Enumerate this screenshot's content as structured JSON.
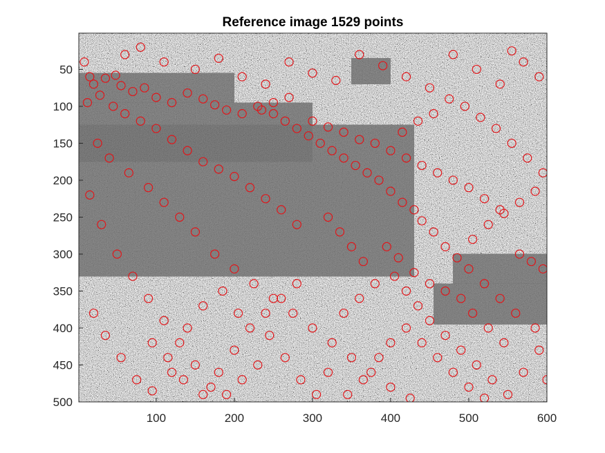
{
  "chart_data": {
    "type": "scatter",
    "title": "Reference image 1529 points",
    "xlabel": "",
    "ylabel": "",
    "xlim": [
      1,
      600
    ],
    "ylim": [
      1,
      500
    ],
    "y_reversed": true,
    "grid": false,
    "legend": "none",
    "xticks": [
      100,
      200,
      300,
      400,
      500,
      600
    ],
    "yticks": [
      50,
      100,
      150,
      200,
      250,
      300,
      350,
      400,
      450,
      500
    ],
    "xtick_labels": [
      "100",
      "200",
      "300",
      "400",
      "500",
      "600"
    ],
    "ytick_labels": [
      "50",
      "100",
      "150",
      "200",
      "250",
      "300",
      "350",
      "400",
      "450",
      "500"
    ],
    "background": "grayscale SAR image of an urban area crossed by a dark river",
    "marker": {
      "shape": "circle-outline",
      "color": "#e0161a"
    },
    "series": [
      {
        "name": "",
        "points": [
          [
            12,
            95
          ],
          [
            20,
            70
          ],
          [
            35,
            62
          ],
          [
            48,
            58
          ],
          [
            55,
            72
          ],
          [
            70,
            80
          ],
          [
            85,
            75
          ],
          [
            100,
            88
          ],
          [
            120,
            95
          ],
          [
            140,
            82
          ],
          [
            160,
            90
          ],
          [
            175,
            98
          ],
          [
            190,
            105
          ],
          [
            210,
            110
          ],
          [
            230,
            100
          ],
          [
            250,
            95
          ],
          [
            270,
            88
          ],
          [
            300,
            120
          ],
          [
            320,
            128
          ],
          [
            340,
            135
          ],
          [
            360,
            145
          ],
          [
            380,
            150
          ],
          [
            400,
            160
          ],
          [
            420,
            170
          ],
          [
            440,
            180
          ],
          [
            460,
            190
          ],
          [
            480,
            200
          ],
          [
            500,
            210
          ],
          [
            520,
            225
          ],
          [
            540,
            240
          ],
          [
            565,
            300
          ],
          [
            580,
            310
          ],
          [
            595,
            320
          ],
          [
            470,
            290
          ],
          [
            455,
            270
          ],
          [
            440,
            255
          ],
          [
            430,
            240
          ],
          [
            415,
            230
          ],
          [
            400,
            215
          ],
          [
            385,
            200
          ],
          [
            370,
            190
          ],
          [
            355,
            180
          ],
          [
            340,
            170
          ],
          [
            325,
            160
          ],
          [
            310,
            150
          ],
          [
            295,
            140
          ],
          [
            280,
            130
          ],
          [
            265,
            120
          ],
          [
            250,
            110
          ],
          [
            235,
            105
          ],
          [
            60,
            30
          ],
          [
            80,
            20
          ],
          [
            110,
            40
          ],
          [
            150,
            50
          ],
          [
            180,
            35
          ],
          [
            210,
            60
          ],
          [
            240,
            70
          ],
          [
            270,
            40
          ],
          [
            300,
            55
          ],
          [
            330,
            65
          ],
          [
            360,
            30
          ],
          [
            390,
            45
          ],
          [
            420,
            60
          ],
          [
            450,
            75
          ],
          [
            480,
            30
          ],
          [
            510,
            50
          ],
          [
            540,
            70
          ],
          [
            570,
            40
          ],
          [
            590,
            60
          ],
          [
            555,
            25
          ],
          [
            25,
            150
          ],
          [
            40,
            170
          ],
          [
            65,
            190
          ],
          [
            90,
            210
          ],
          [
            110,
            230
          ],
          [
            130,
            250
          ],
          [
            150,
            270
          ],
          [
            175,
            300
          ],
          [
            200,
            320
          ],
          [
            225,
            340
          ],
          [
            250,
            360
          ],
          [
            275,
            380
          ],
          [
            300,
            400
          ],
          [
            325,
            420
          ],
          [
            350,
            440
          ],
          [
            375,
            460
          ],
          [
            400,
            480
          ],
          [
            425,
            495
          ],
          [
            15,
            220
          ],
          [
            30,
            260
          ],
          [
            50,
            300
          ],
          [
            70,
            330
          ],
          [
            90,
            360
          ],
          [
            110,
            390
          ],
          [
            130,
            420
          ],
          [
            150,
            450
          ],
          [
            170,
            480
          ],
          [
            190,
            490
          ],
          [
            210,
            470
          ],
          [
            230,
            450
          ],
          [
            20,
            380
          ],
          [
            35,
            410
          ],
          [
            55,
            440
          ],
          [
            75,
            470
          ],
          [
            95,
            485
          ],
          [
            120,
            460
          ],
          [
            140,
            400
          ],
          [
            160,
            370
          ],
          [
            185,
            350
          ],
          [
            205,
            380
          ],
          [
            245,
            410
          ],
          [
            265,
            440
          ],
          [
            285,
            470
          ],
          [
            305,
            490
          ],
          [
            320,
            460
          ],
          [
            340,
            380
          ],
          [
            360,
            360
          ],
          [
            380,
            340
          ],
          [
            405,
            330
          ],
          [
            420,
            350
          ],
          [
            435,
            370
          ],
          [
            450,
            390
          ],
          [
            470,
            410
          ],
          [
            490,
            430
          ],
          [
            510,
            450
          ],
          [
            530,
            470
          ],
          [
            550,
            490
          ],
          [
            570,
            460
          ],
          [
            590,
            430
          ],
          [
            585,
            400
          ],
          [
            560,
            380
          ],
          [
            540,
            360
          ],
          [
            520,
            340
          ],
          [
            500,
            320
          ],
          [
            485,
            305
          ],
          [
            505,
            280
          ],
          [
            525,
            260
          ],
          [
            545,
            245
          ],
          [
            565,
            230
          ],
          [
            585,
            215
          ],
          [
            595,
            190
          ],
          [
            575,
            170
          ],
          [
            555,
            150
          ],
          [
            535,
            130
          ],
          [
            515,
            115
          ],
          [
            495,
            100
          ],
          [
            475,
            90
          ],
          [
            455,
            110
          ],
          [
            435,
            120
          ],
          [
            415,
            135
          ],
          [
            320,
            250
          ],
          [
            335,
            270
          ],
          [
            350,
            290
          ],
          [
            365,
            310
          ],
          [
            280,
            260
          ],
          [
            260,
            240
          ],
          [
            240,
            225
          ],
          [
            220,
            210
          ],
          [
            200,
            195
          ],
          [
            180,
            185
          ],
          [
            160,
            175
          ],
          [
            140,
            160
          ],
          [
            120,
            145
          ],
          [
            100,
            130
          ],
          [
            80,
            120
          ],
          [
            60,
            110
          ],
          [
            45,
            100
          ],
          [
            28,
            85
          ],
          [
            15,
            60
          ],
          [
            8,
            40
          ],
          [
            420,
            400
          ],
          [
            440,
            420
          ],
          [
            460,
            440
          ],
          [
            480,
            460
          ],
          [
            500,
            480
          ],
          [
            520,
            495
          ],
          [
            400,
            420
          ],
          [
            385,
            440
          ],
          [
            365,
            470
          ],
          [
            345,
            490
          ],
          [
            600,
            470
          ],
          [
            545,
            420
          ],
          [
            525,
            400
          ],
          [
            505,
            380
          ],
          [
            490,
            360
          ],
          [
            470,
            350
          ],
          [
            450,
            340
          ],
          [
            430,
            325
          ],
          [
            410,
            305
          ],
          [
            395,
            290
          ],
          [
            95,
            420
          ],
          [
            115,
            440
          ],
          [
            135,
            470
          ],
          [
            160,
            490
          ],
          [
            180,
            460
          ],
          [
            200,
            430
          ],
          [
            220,
            400
          ],
          [
            240,
            380
          ],
          [
            260,
            360
          ],
          [
            280,
            340
          ]
        ]
      }
    ]
  }
}
